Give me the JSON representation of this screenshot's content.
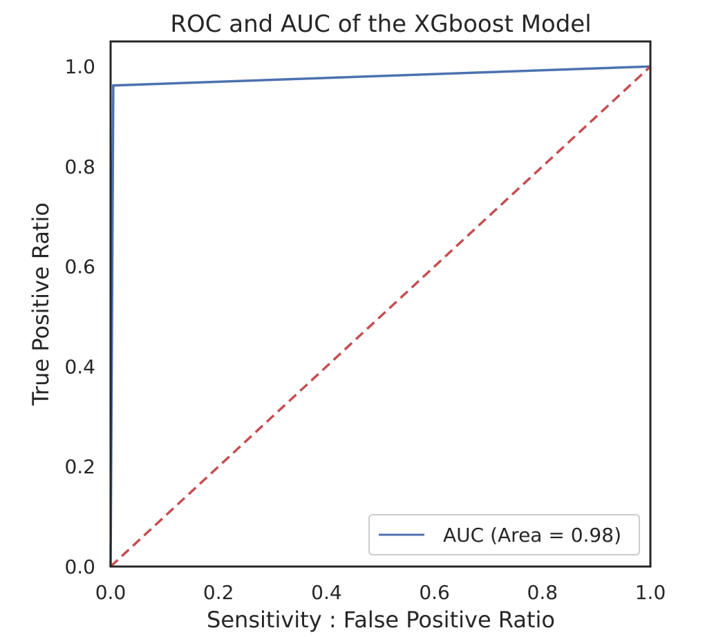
{
  "chart_data": {
    "type": "line",
    "title": "ROC and AUC of the XGboost Model",
    "xlabel": "Sensitivity : False Positive Ratio",
    "ylabel": "True Positive Ratio",
    "xlim": [
      0.0,
      1.0
    ],
    "ylim": [
      0.0,
      1.05
    ],
    "xticks": [
      "0.0",
      "0.2",
      "0.4",
      "0.6",
      "0.8",
      "1.0"
    ],
    "yticks": [
      "0.0",
      "0.2",
      "0.4",
      "0.6",
      "0.8",
      "1.0"
    ],
    "grid": false,
    "legend_position": "lower-right",
    "series": [
      {
        "name": "AUC (Area = 0.98)",
        "color": "#4c72b0",
        "style": "solid",
        "x": [
          0.0,
          0.005,
          1.0
        ],
        "y": [
          0.0,
          0.962,
          1.0
        ]
      },
      {
        "color": "#c44e52",
        "style": "dashed",
        "x": [
          0.0,
          1.0
        ],
        "y": [
          0.0,
          1.0
        ]
      }
    ]
  }
}
